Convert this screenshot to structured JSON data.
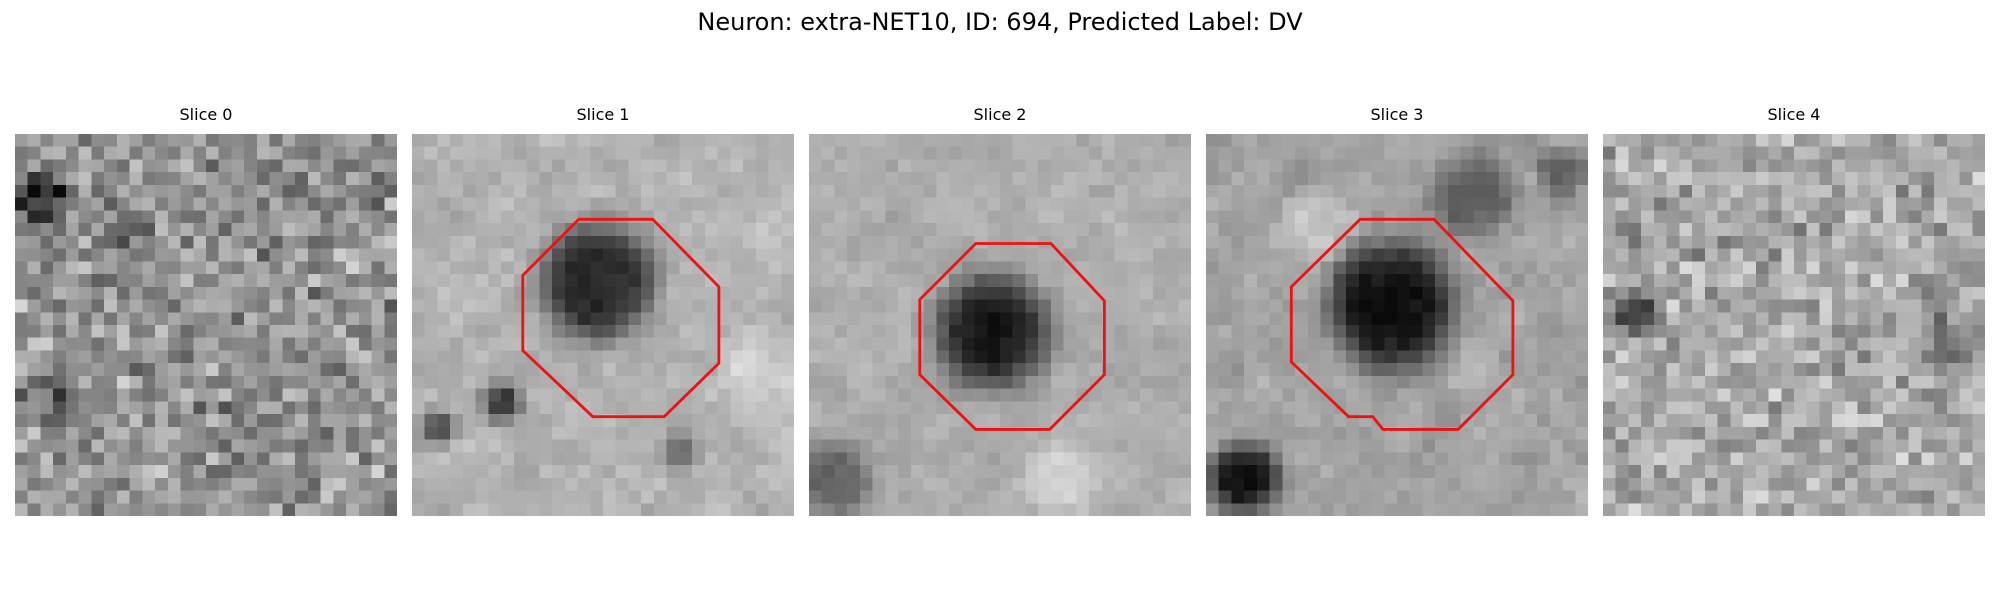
{
  "figure": {
    "title": "Neuron: extra-NET10, ID: 694, Predicted Label: DV"
  },
  "panels": [
    {
      "title": "Slice 0",
      "has_roi": false
    },
    {
      "title": "Slice 1",
      "has_roi": true
    },
    {
      "title": "Slice 2",
      "has_roi": true
    },
    {
      "title": "Slice 3",
      "has_roi": true
    },
    {
      "title": "Slice 4",
      "has_roi": false
    }
  ],
  "colors": {
    "roi_outline": "#ee1111",
    "background": "#ffffff"
  }
}
